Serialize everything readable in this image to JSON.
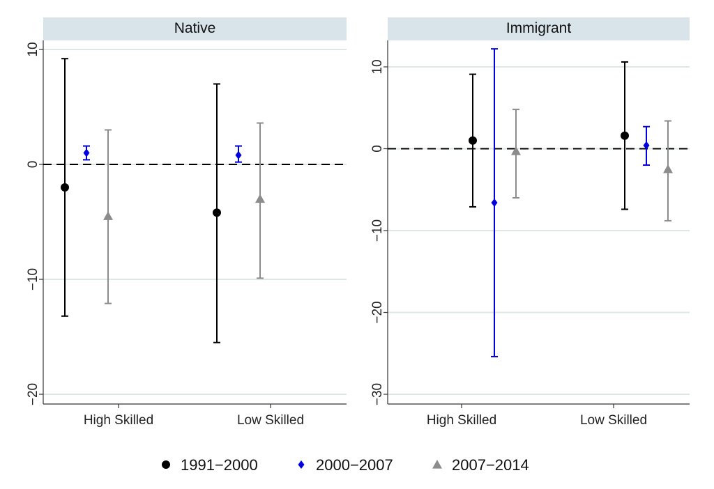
{
  "chart_data": {
    "type": "scatter",
    "subtype": "point-range (coefficient plot with confidence intervals)",
    "layout": "two facet panels side by side",
    "legend_position": "bottom",
    "grid": "horizontal gridlines",
    "reference_line": {
      "y": 0,
      "style": "dashed"
    },
    "series_styles": [
      {
        "name": "1991−2000",
        "color": "#000000",
        "marker": "circle"
      },
      {
        "name": "2000−2007",
        "color": "#0000e0",
        "marker": "diamond"
      },
      {
        "name": "2007−2014",
        "color": "#8c8c8c",
        "marker": "triangle"
      }
    ],
    "categories": [
      "High Skilled",
      "Low Skilled"
    ],
    "panels": [
      {
        "title": "Native",
        "ylim": [
          -21,
          11
        ],
        "yticks": [
          10,
          0,
          -10,
          -20
        ],
        "ytick_labels": [
          "10",
          "0",
          "−10",
          "−20"
        ],
        "series": [
          {
            "name": "1991−2000",
            "values": [
              -2.0,
              -4.2
            ],
            "lower": [
              -13.2,
              -15.5
            ],
            "upper": [
              9.2,
              7.0
            ]
          },
          {
            "name": "2000−2007",
            "values": [
              1.0,
              0.8
            ],
            "lower": [
              0.4,
              0.2
            ],
            "upper": [
              1.6,
              1.6
            ]
          },
          {
            "name": "2007−2014",
            "values": [
              -4.5,
              -3.0
            ],
            "lower": [
              -12.1,
              -9.9
            ],
            "upper": [
              3.0,
              3.6
            ]
          }
        ]
      },
      {
        "title": "Immigrant",
        "ylim": [
          -31,
          13
        ],
        "yticks": [
          10,
          0,
          -10,
          -20,
          -30
        ],
        "ytick_labels": [
          "10",
          "0",
          "−10",
          "−20",
          "−30"
        ],
        "series": [
          {
            "name": "1991−2000",
            "values": [
              1.0,
              1.6
            ],
            "lower": [
              -7.1,
              -7.4
            ],
            "upper": [
              9.1,
              10.6
            ]
          },
          {
            "name": "2000−2007",
            "values": [
              -6.6,
              0.4
            ],
            "lower": [
              -25.4,
              -2.0
            ],
            "upper": [
              12.2,
              2.7
            ]
          },
          {
            "name": "2007−2014",
            "values": [
              -0.3,
              -2.5
            ],
            "lower": [
              -6.0,
              -8.8
            ],
            "upper": [
              4.8,
              3.4
            ]
          }
        ]
      }
    ]
  }
}
